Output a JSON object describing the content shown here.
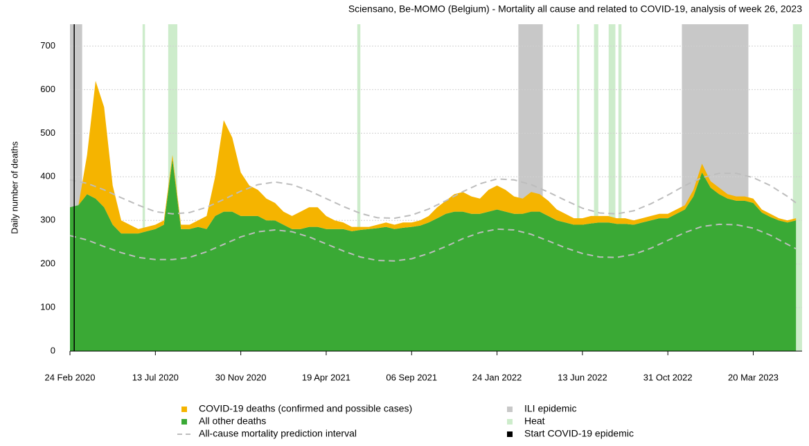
{
  "chart_data": {
    "type": "stacked-area",
    "title": "Sciensano, Be-MOMO (Belgium) - Mortality all cause and related to COVID-19, analysis of week 26, 2023",
    "y_label": "Daily number of deaths",
    "x": [
      "2020-02-24",
      "2020-03-09",
      "2020-03-23",
      "2020-04-06",
      "2020-04-20",
      "2020-05-04",
      "2020-05-18",
      "2020-06-01",
      "2020-06-15",
      "2020-06-29",
      "2020-07-13",
      "2020-07-27",
      "2020-08-10",
      "2020-08-24",
      "2020-09-07",
      "2020-09-21",
      "2020-10-05",
      "2020-10-19",
      "2020-11-02",
      "2020-11-16",
      "2020-11-30",
      "2020-12-14",
      "2020-12-28",
      "2021-01-11",
      "2021-01-25",
      "2021-02-08",
      "2021-02-22",
      "2021-03-08",
      "2021-03-22",
      "2021-04-05",
      "2021-04-19",
      "2021-05-03",
      "2021-05-17",
      "2021-05-31",
      "2021-06-14",
      "2021-06-28",
      "2021-07-12",
      "2021-07-26",
      "2021-08-09",
      "2021-08-23",
      "2021-09-06",
      "2021-09-20",
      "2021-10-04",
      "2021-10-18",
      "2021-11-01",
      "2021-11-15",
      "2021-11-29",
      "2021-12-13",
      "2021-12-27",
      "2022-01-10",
      "2022-01-24",
      "2022-02-07",
      "2022-02-21",
      "2022-03-07",
      "2022-03-21",
      "2022-04-04",
      "2022-04-18",
      "2022-05-02",
      "2022-05-16",
      "2022-05-30",
      "2022-06-13",
      "2022-06-27",
      "2022-07-11",
      "2022-07-25",
      "2022-08-08",
      "2022-08-22",
      "2022-09-05",
      "2022-09-19",
      "2022-10-03",
      "2022-10-17",
      "2022-10-31",
      "2022-11-14",
      "2022-11-28",
      "2022-12-12",
      "2022-12-26",
      "2023-01-09",
      "2023-01-23",
      "2023-02-06",
      "2023-02-20",
      "2023-03-06",
      "2023-03-20",
      "2023-04-03",
      "2023-04-17",
      "2023-05-01",
      "2023-05-15",
      "2023-05-29"
    ],
    "series": [
      {
        "name": "COVID-19 deaths (confirmed and possible cases)",
        "color": "#f5b400",
        "values": [
          0,
          0,
          90,
          270,
          230,
          90,
          30,
          20,
          10,
          10,
          10,
          10,
          10,
          10,
          10,
          15,
          30,
          90,
          210,
          170,
          100,
          70,
          60,
          50,
          40,
          30,
          30,
          40,
          45,
          45,
          30,
          20,
          15,
          10,
          7,
          5,
          8,
          10,
          10,
          12,
          10,
          12,
          15,
          25,
          30,
          40,
          45,
          40,
          35,
          50,
          55,
          50,
          40,
          35,
          45,
          40,
          35,
          25,
          20,
          15,
          15,
          17,
          15,
          15,
          13,
          13,
          10,
          10,
          10,
          10,
          10,
          10,
          10,
          15,
          20,
          15,
          15,
          10,
          10,
          10,
          10,
          7,
          7,
          5,
          5,
          5
        ]
      },
      {
        "name": "All other deaths",
        "color": "#3aa935",
        "values": [
          330,
          335,
          360,
          350,
          330,
          290,
          270,
          270,
          270,
          275,
          280,
          290,
          440,
          280,
          280,
          285,
          280,
          310,
          320,
          320,
          310,
          310,
          310,
          300,
          300,
          290,
          280,
          280,
          285,
          285,
          280,
          280,
          280,
          275,
          278,
          280,
          282,
          285,
          280,
          283,
          285,
          288,
          295,
          305,
          315,
          320,
          320,
          315,
          315,
          320,
          325,
          320,
          315,
          315,
          320,
          320,
          310,
          300,
          295,
          290,
          290,
          293,
          295,
          295,
          292,
          292,
          290,
          295,
          300,
          305,
          305,
          315,
          325,
          355,
          410,
          375,
          360,
          350,
          345,
          345,
          340,
          318,
          308,
          300,
          295,
          300
        ]
      }
    ],
    "interval": {
      "name": "All-cause mortality prediction interval",
      "color": "#bdbdbd",
      "x": [
        "2020-02-24",
        "2020-03-23",
        "2020-04-20",
        "2020-05-18",
        "2020-06-15",
        "2020-07-13",
        "2020-08-10",
        "2020-09-07",
        "2020-10-05",
        "2020-11-02",
        "2020-11-30",
        "2020-12-28",
        "2021-01-25",
        "2021-02-22",
        "2021-03-22",
        "2021-04-19",
        "2021-05-17",
        "2021-06-14",
        "2021-07-12",
        "2021-08-09",
        "2021-09-06",
        "2021-10-04",
        "2021-11-01",
        "2021-11-29",
        "2021-12-27",
        "2022-01-24",
        "2022-02-21",
        "2022-03-21",
        "2022-04-18",
        "2022-05-16",
        "2022-06-13",
        "2022-07-11",
        "2022-08-08",
        "2022-09-05",
        "2022-10-03",
        "2022-10-31",
        "2022-11-28",
        "2022-12-26",
        "2023-01-23",
        "2023-02-20",
        "2023-03-20",
        "2023-04-17",
        "2023-05-15",
        "2023-05-29"
      ],
      "upper": [
        393,
        385,
        370,
        352,
        335,
        320,
        315,
        318,
        330,
        348,
        367,
        382,
        388,
        382,
        368,
        350,
        332,
        316,
        306,
        305,
        312,
        326,
        345,
        366,
        384,
        395,
        393,
        382,
        365,
        346,
        328,
        317,
        315,
        322,
        338,
        358,
        380,
        398,
        408,
        408,
        398,
        380,
        355,
        340
      ],
      "lower": [
        265,
        255,
        240,
        226,
        215,
        210,
        210,
        215,
        228,
        245,
        262,
        274,
        278,
        274,
        262,
        246,
        230,
        216,
        208,
        207,
        212,
        224,
        240,
        258,
        272,
        280,
        278,
        268,
        253,
        237,
        224,
        216,
        215,
        222,
        236,
        254,
        272,
        286,
        291,
        290,
        282,
        266,
        245,
        235
      ]
    },
    "ili": {
      "name": "ILI epidemic",
      "color": "#c8c8c8",
      "periods": [
        [
          "2020-02-24",
          "2020-03-15"
        ],
        [
          "2022-02-28",
          "2022-04-09"
        ],
        [
          "2022-11-23",
          "2023-03-12"
        ]
      ]
    },
    "heat": {
      "name": "Heat",
      "color": "#cdeccb",
      "periods": [
        [
          "2020-06-22",
          "2020-06-26"
        ],
        [
          "2020-08-03",
          "2020-08-18"
        ],
        [
          "2021-06-09",
          "2021-06-14"
        ],
        [
          "2022-06-04",
          "2022-06-08"
        ],
        [
          "2022-07-02",
          "2022-07-09"
        ],
        [
          "2022-07-26",
          "2022-08-06"
        ],
        [
          "2022-08-11",
          "2022-08-16"
        ],
        [
          "2023-05-24",
          "2023-06-08"
        ]
      ]
    },
    "start": {
      "name": "Start COVID-19 epidemic",
      "color": "#000000",
      "date": "2020-03-02"
    },
    "xlim": [
      "2020-02-24",
      "2023-06-08"
    ],
    "xticks": [
      {
        "value": "2020-02-24",
        "label": "24 Feb 2020"
      },
      {
        "value": "2020-07-13",
        "label": "13 Jul 2020"
      },
      {
        "value": "2020-11-30",
        "label": "30 Nov 2020"
      },
      {
        "value": "2021-04-19",
        "label": "19 Apr 2021"
      },
      {
        "value": "2021-09-06",
        "label": "06 Sep 2021"
      },
      {
        "value": "2022-01-24",
        "label": "24 Jan 2022"
      },
      {
        "value": "2022-06-13",
        "label": "13 Jun 2022"
      },
      {
        "value": "2022-10-31",
        "label": "31 Oct 2022"
      },
      {
        "value": "2023-03-20",
        "label": "20 Mar 2023"
      }
    ],
    "ylim": [
      0,
      750
    ],
    "yticks": [
      0,
      100,
      200,
      300,
      400,
      500,
      600,
      700
    ],
    "grid": true
  }
}
